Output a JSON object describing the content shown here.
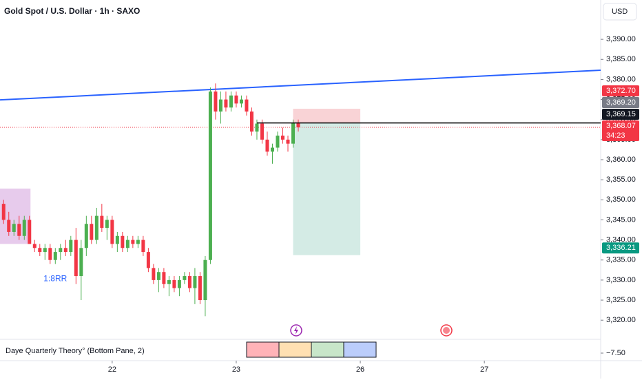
{
  "header": {
    "title": "Gold Spot / U.S. Dollar · 1h · SAXO",
    "currency": "USD"
  },
  "chart_data": {
    "type": "candlestick",
    "up_color": "#4caf50",
    "down_color": "#f23645",
    "open": [
      3349,
      3345,
      3342,
      3344,
      3341,
      3345,
      3339,
      3338,
      3337,
      3338,
      3335,
      3337,
      3338,
      3337,
      3340,
      3331,
      3338,
      3344,
      3340,
      3346,
      3343,
      3345,
      3339,
      3341,
      3338,
      3340,
      3339,
      3340,
      3337,
      3333,
      3330,
      3332,
      3329,
      3330,
      3328,
      3330,
      3331,
      3328,
      3331,
      3325,
      3335,
      3377,
      3372,
      3375,
      3373,
      3376,
      3374,
      3375,
      3372,
      3367,
      3369,
      3365,
      3362,
      3363,
      3366,
      3365,
      3364,
      3369.2
    ],
    "high": [
      3350,
      3347,
      3345,
      3346,
      3346,
      3346,
      3340,
      3339,
      3339,
      3339,
      3338,
      3339,
      3340,
      3341,
      3343,
      3340,
      3346,
      3346,
      3348,
      3349,
      3346,
      3346,
      3342,
      3342,
      3341,
      3341,
      3341,
      3341,
      3338,
      3334,
      3333,
      3333,
      3331,
      3331,
      3331,
      3332,
      3332,
      3333,
      3332,
      3336,
      3378,
      3379,
      3377,
      3377,
      3377,
      3377,
      3376,
      3376,
      3373,
      3370,
      3370,
      3367,
      3364,
      3367,
      3368,
      3366,
      3370,
      3370
    ],
    "low": [
      3344,
      3341,
      3341,
      3340,
      3340,
      3339,
      3337,
      3336,
      3335,
      3334,
      3334,
      3335,
      3336,
      3336,
      3329,
      3325,
      3336,
      3339,
      3339,
      3342,
      3340,
      3338,
      3337,
      3337,
      3337,
      3338,
      3338,
      3336,
      3332,
      3329,
      3327,
      3328,
      3326,
      3327,
      3326,
      3329,
      3327,
      3324,
      3324,
      3321,
      3334,
      3370,
      3369,
      3372,
      3372,
      3373,
      3373,
      3371,
      3366,
      3365,
      3364,
      3361,
      3359,
      3362,
      3364,
      3362,
      3363,
      3367
    ],
    "close": [
      3345,
      3342,
      3344,
      3341,
      3345,
      3339,
      3338,
      3337,
      3338,
      3335,
      3337,
      3338,
      3337,
      3340,
      3331,
      3338,
      3344,
      3340,
      3346,
      3343,
      3345,
      3339,
      3341,
      3338,
      3340,
      3339,
      3340,
      3337,
      3333,
      3330,
      3332,
      3329,
      3330,
      3328,
      3330,
      3331,
      3328,
      3331,
      3325,
      3335,
      3377,
      3372,
      3375,
      3373,
      3376,
      3374,
      3375,
      3372,
      3367,
      3369,
      3365,
      3362,
      3363,
      3366,
      3365,
      3364,
      3369.2,
      3368.07
    ],
    "xlim": [
      -0.7,
      115.5
    ],
    "xticks": [
      {
        "value": 21,
        "label": "22"
      },
      {
        "value": 45,
        "label": "23"
      },
      {
        "value": 69,
        "label": "26"
      },
      {
        "value": 93,
        "label": "27"
      }
    ],
    "ylim": [
      3315.4,
      3399.8
    ],
    "yticks": [
      {
        "value": 3320,
        "label": "3,320.00"
      },
      {
        "value": 3325,
        "label": "3,325.00"
      },
      {
        "value": 3330,
        "label": "3,330.00"
      },
      {
        "value": 3335,
        "label": "3,335.00"
      },
      {
        "value": 3340,
        "label": "3,340.00"
      },
      {
        "value": 3345,
        "label": "3,345.00"
      },
      {
        "value": 3350,
        "label": "3,350.00"
      },
      {
        "value": 3355,
        "label": "3,355.00"
      },
      {
        "value": 3360,
        "label": "3,360.00"
      },
      {
        "value": 3365,
        "label": "3,365.00"
      },
      {
        "value": 3370,
        "label": "3,370.00"
      },
      {
        "value": 3375,
        "label": "3,375.00"
      },
      {
        "value": 3380,
        "label": "3,380.00"
      },
      {
        "value": 3385,
        "label": "3,385.00"
      },
      {
        "value": 3390,
        "label": "3,390.00"
      }
    ],
    "trendline": {
      "color": "#2962ff",
      "x": [
        -0.7,
        115.5
      ],
      "y": [
        3374.9,
        3382.3
      ]
    },
    "zone": {
      "color": "#e1bee7",
      "x": [
        -0.7,
        5.2
      ],
      "y": [
        3339,
        3352.8
      ]
    },
    "position": {
      "x": [
        56,
        69
      ],
      "entry": 3369.15,
      "stop": 3372.7,
      "target": 3336.21,
      "stop_color": "#f8c8cc",
      "target_color": "#cfe9e2"
    },
    "entry_line": {
      "x": 49,
      "value": 3369.15,
      "color": "#000000"
    },
    "price_line": {
      "value": 3368.07,
      "color": "#f23645"
    },
    "annotation": {
      "text": "1:8RR",
      "x": 10,
      "y": 3330.3,
      "color": "#2962ff"
    },
    "price_labels": [
      {
        "value": 3372.7,
        "label": "3,372.70",
        "color": "#f23645"
      },
      {
        "value": 3369.2,
        "label": "3,369.20",
        "color": "#787b86"
      },
      {
        "value": 3369.15,
        "label": "3,369.15",
        "color": "#131722"
      },
      {
        "value": 3368.07,
        "label": "3,368.07",
        "color": "#f23645",
        "countdown": "34:23"
      },
      {
        "value": 3336.21,
        "label": "3,336.21",
        "color": "#089981"
      }
    ]
  },
  "indicator": {
    "label": "Daye Quarterly Theory° (Bottom Pane, 2)",
    "ytick": {
      "value": -7.5,
      "label": "−7.50"
    },
    "colors": [
      "#ffb3b8",
      "#ffe0b2",
      "#c8e6c9",
      "#bbcdfb"
    ]
  }
}
